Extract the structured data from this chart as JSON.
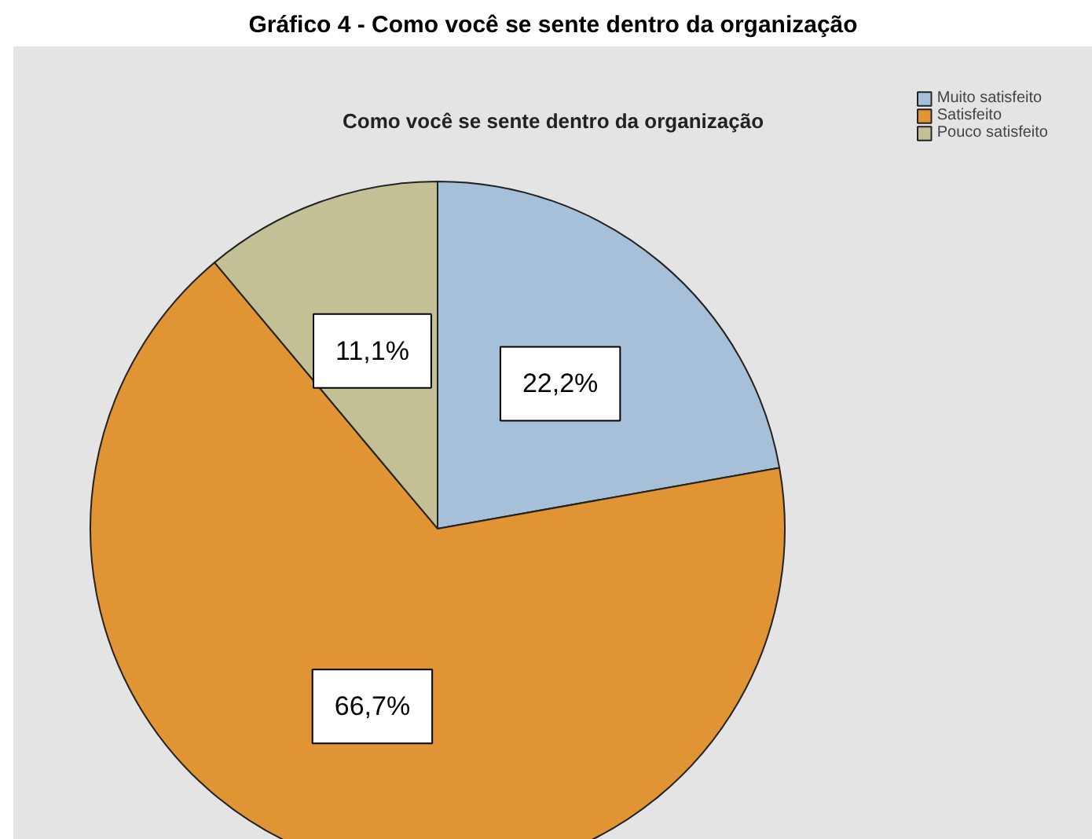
{
  "chart_data": {
    "type": "pie",
    "title": "Gráfico 4 - Como você se sente dentro da organização",
    "subtitle": "Como você se sente dentro da organização",
    "categories": [
      "Muito satisfeito",
      "Satisfeito",
      "Pouco satisfeito"
    ],
    "values": [
      22.2,
      66.7,
      11.1
    ],
    "colors": [
      "#a7c0da",
      "#e09433",
      "#c4c095"
    ],
    "value_labels": [
      "22,2%",
      "66,7%",
      "11,1%"
    ],
    "legend": "top right"
  }
}
